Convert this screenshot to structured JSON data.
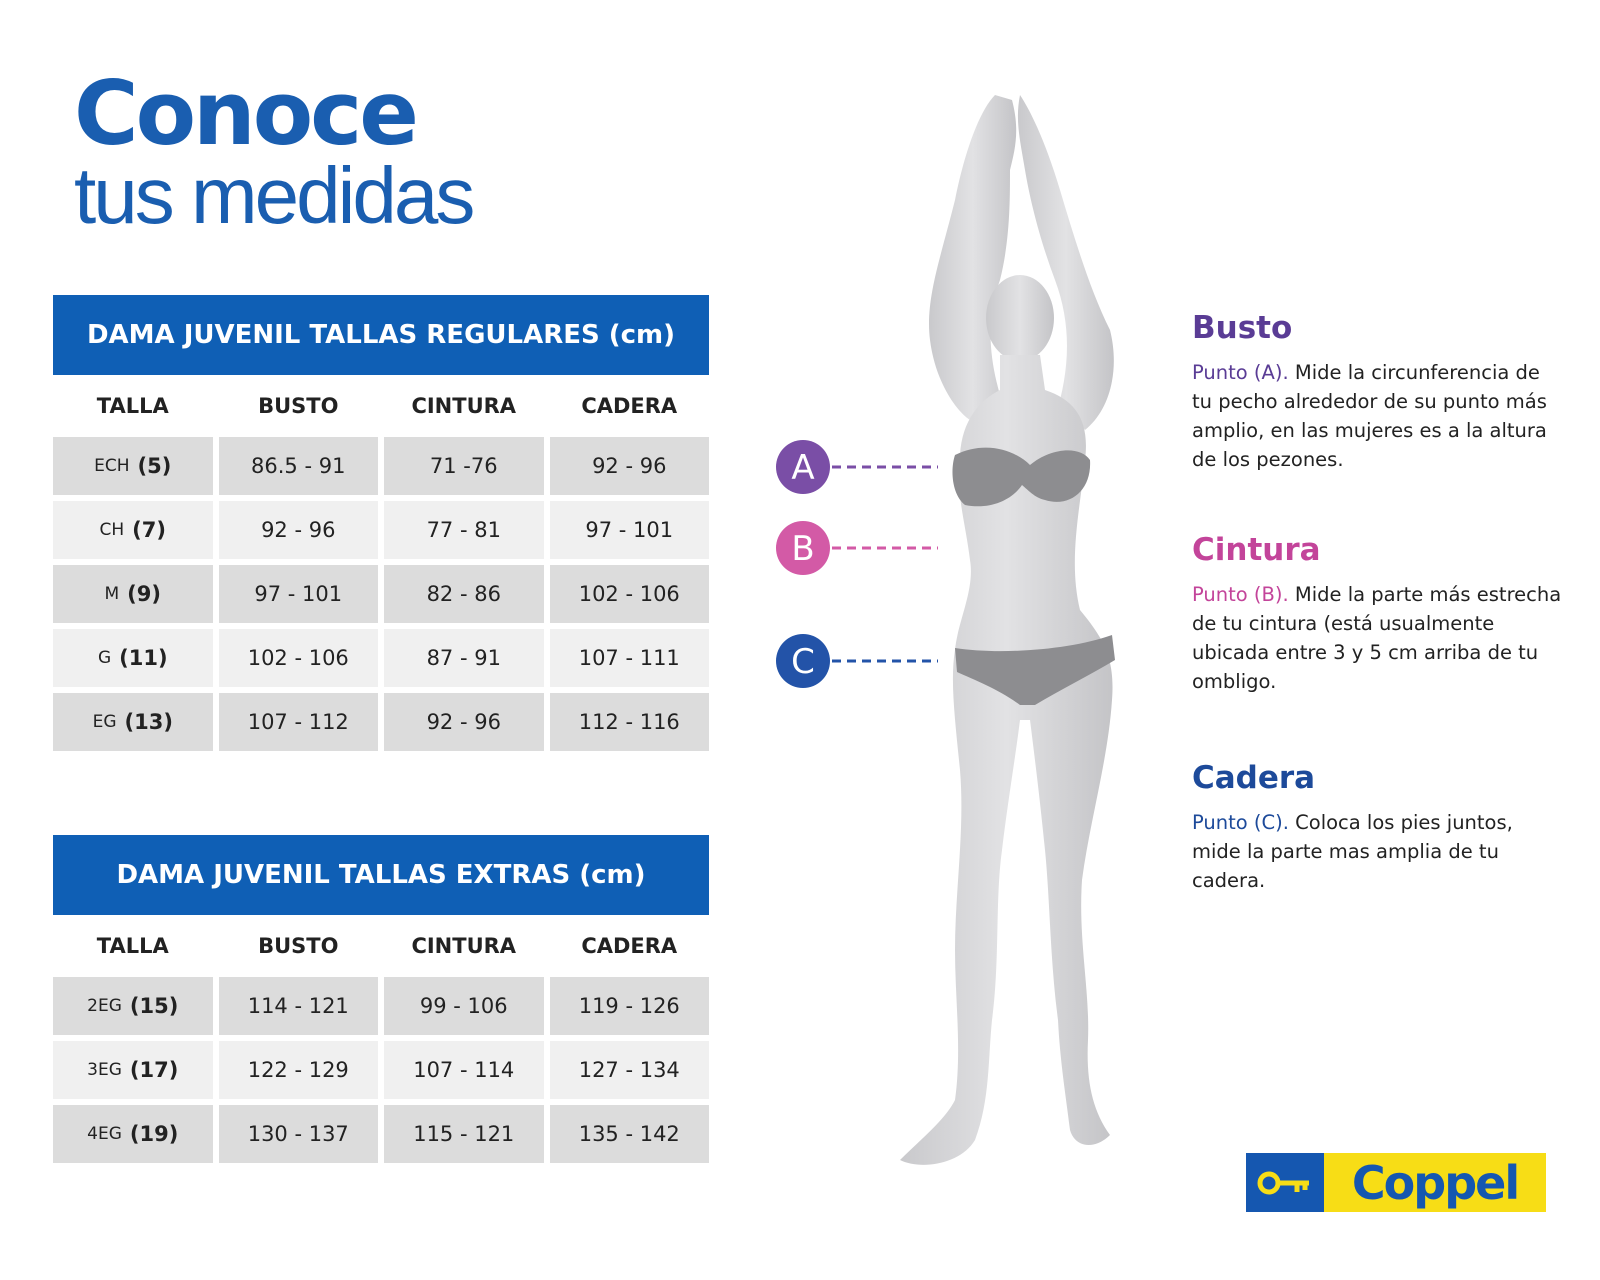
{
  "header": {
    "title_line1": "Conoce",
    "title_line2": "tus medidas"
  },
  "tables": [
    {
      "title": "DAMA JUVENIL TALLAS REGULARES (cm)",
      "columns": [
        "TALLA",
        "BUSTO",
        "CINTURA",
        "CADERA"
      ],
      "rows": [
        [
          "ECH",
          "(5)",
          "86.5 - 91",
          "71 -76",
          "92 - 96"
        ],
        [
          "CH",
          "(7)",
          "92 - 96",
          "77 - 81",
          "97 - 101"
        ],
        [
          "M",
          "(9)",
          "97 - 101",
          "82 - 86",
          "102 - 106"
        ],
        [
          "G",
          "(11)",
          "102 - 106",
          "87 - 91",
          "107 - 111"
        ],
        [
          "EG",
          "(13)",
          "107 - 112",
          "92 - 96",
          "112 - 116"
        ]
      ]
    },
    {
      "title": "DAMA JUVENIL TALLAS EXTRAS (cm)",
      "columns": [
        "TALLA",
        "BUSTO",
        "CINTURA",
        "CADERA"
      ],
      "rows": [
        [
          "2EG",
          "(15)",
          "114 - 121",
          "99 - 106",
          "119 - 126"
        ],
        [
          "3EG",
          "(17)",
          "122 - 129",
          "107 - 114",
          "127 - 134"
        ],
        [
          "4EG",
          "(19)",
          "130 - 137",
          "115 - 121",
          "135 - 142"
        ]
      ]
    }
  ],
  "markers": [
    "A",
    "B",
    "C"
  ],
  "measures": [
    {
      "name": "Busto",
      "point": "Punto (A).",
      "text": "Mide la circunferencia de tu pecho alrededor de su punto más amplio, en las mujeres es a la altura de los pezones."
    },
    {
      "name": "Cintura",
      "point": "Punto (B).",
      "text": "Mide la parte más estrecha de tu cintura (está usualmente ubicada entre 3 y 5 cm arriba de tu ombligo."
    },
    {
      "name": "Cadera",
      "point": "Punto (C).",
      "text": "Coloca los pies juntos, mide la parte mas amplia de tu cadera."
    }
  ],
  "logo": "Coppel"
}
